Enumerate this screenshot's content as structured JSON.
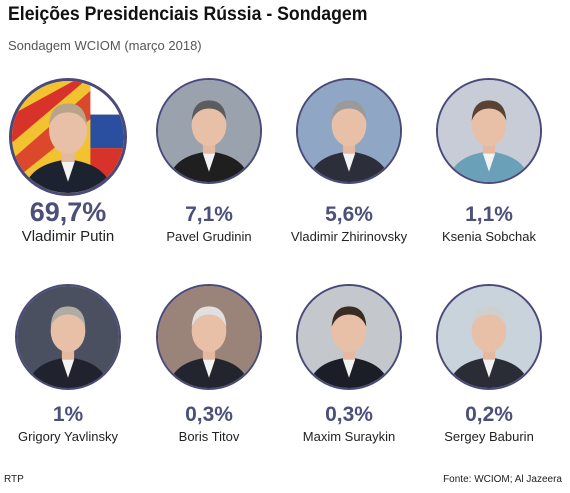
{
  "header": {
    "title": "Eleições Presidenciais Rússia - Sondagem",
    "subtitle": "Sondagem WCIOM  (março 2018)"
  },
  "chart_data": {
    "type": "bar",
    "categories": [
      "Vladimir Putin",
      "Pavel Grudinin",
      "Vladimir Zhirinovsky",
      "Ksenia Sobchak",
      "Grigory Yavlinsky",
      "Boris Titov",
      "Maxim Suraykin",
      "Sergey Baburin"
    ],
    "values": [
      69.7,
      7.1,
      5.6,
      1.1,
      1,
      0.3,
      0.3,
      0.2
    ],
    "labels": [
      "69,7%",
      "7,1%",
      "5,6%",
      "1,1%",
      "1%",
      "0,3%",
      "0,3%",
      "0,2%"
    ],
    "title": "Eleições Presidenciais Rússia - Sondagem",
    "subtitle": "Sondagem WCIOM  (março 2018)",
    "accent": "#4b4f7a"
  },
  "candidates": [
    {
      "name": "Vladimir Putin",
      "pct": "69,7%",
      "bg": "#e8a23a",
      "hair": "#b9a48a",
      "suit": "#1d2230"
    },
    {
      "name": "Pavel Grudinin",
      "pct": "7,1%",
      "bg": "#9aa3ad",
      "hair": "#5c5c5c",
      "suit": "#1f1f1f"
    },
    {
      "name": "Vladimir Zhirinovsky",
      "pct": "5,6%",
      "bg": "#8fa6c4",
      "hair": "#9a9a9a",
      "suit": "#2c2e3a"
    },
    {
      "name": "Ksenia Sobchak",
      "pct": "1,1%",
      "bg": "#c8ccd6",
      "hair": "#5a4232",
      "suit": "#6aa0b8"
    },
    {
      "name": "Grigory Yavlinsky",
      "pct": "1%",
      "bg": "#4a5060",
      "hair": "#b0aca4",
      "suit": "#20232e"
    },
    {
      "name": "Boris Titov",
      "pct": "0,3%",
      "bg": "#9a8378",
      "hair": "#e0e0e0",
      "suit": "#22252e"
    },
    {
      "name": "Maxim Suraykin",
      "pct": "0,3%",
      "bg": "#c4c8cc",
      "hair": "#3a2c22",
      "suit": "#1b1e26"
    },
    {
      "name": "Sergey Baburin",
      "pct": "0,2%",
      "bg": "#c9d3dc",
      "hair": "#cfcfcf",
      "suit": "#2a2d36"
    }
  ],
  "footer": {
    "left": "RTP",
    "right": "Fonte: WCIOM; Al Jazeera"
  }
}
